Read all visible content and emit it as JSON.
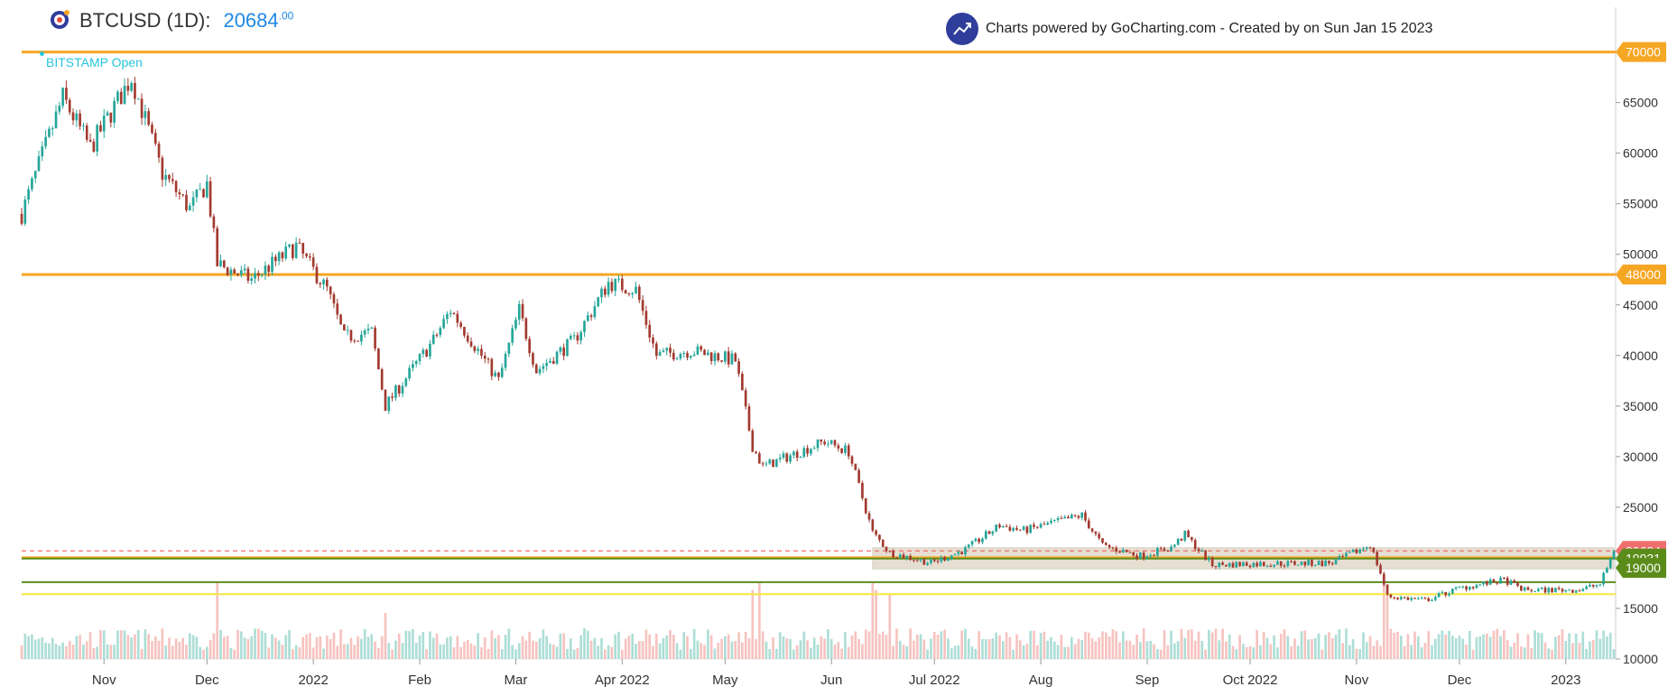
{
  "header": {
    "symbol": "BTCUSD (1D):",
    "price_main": "20684",
    "price_dec": ".00",
    "credit": "Charts powered by GoCharting.com - Created by  on Sun Jan 15 2023",
    "indicator": "BITSTAMP Open"
  },
  "colors": {
    "up": "#26a69a",
    "down": "#a33a2f",
    "orange": "#f5a623",
    "green_line": "#5b8c1a",
    "yellow": "#f5e642",
    "last_price": "#ef6f6c",
    "zone": "#c8b89a",
    "price_blue": "#1e88e5"
  },
  "chart_data": {
    "type": "candlestick",
    "title": "BTCUSD (1D)",
    "last_price": 20684,
    "y_ticks": [
      10000,
      15000,
      20000,
      25000,
      30000,
      35000,
      40000,
      45000,
      50000,
      55000,
      60000,
      65000,
      70000
    ],
    "ylim": [
      10000,
      70500
    ],
    "x_ticks": [
      "Nov",
      "Dec",
      "2022",
      "Feb",
      "Mar",
      "Apr 2022",
      "May",
      "Jun",
      "Jul 2022",
      "Aug",
      "Sep",
      "Oct 2022",
      "Nov",
      "Dec",
      "2023"
    ],
    "x_tick_dates": [
      "2021-11-01",
      "2021-12-01",
      "2022-01-01",
      "2022-02-01",
      "2022-03-01",
      "2022-04-01",
      "2022-05-01",
      "2022-06-01",
      "2022-07-01",
      "2022-08-01",
      "2022-09-01",
      "2022-10-01",
      "2022-11-01",
      "2022-12-01",
      "2023-01-01"
    ],
    "x_range": [
      "2021-10-08",
      "2023-01-15"
    ],
    "horizontal_levels": [
      {
        "value": 70000,
        "color": "orange",
        "label": "70000"
      },
      {
        "value": 48000,
        "color": "orange",
        "label": "48000"
      },
      {
        "value": 20684,
        "color": "last_price",
        "label": "20684",
        "dashed": true
      },
      {
        "value": 20000,
        "color": "orange",
        "label": ""
      },
      {
        "value": 19931,
        "color": "green_line",
        "label": "19931"
      },
      {
        "value": 17600,
        "color": "green_line",
        "label": ""
      },
      {
        "value": 16400,
        "color": "yellow",
        "label": ""
      },
      {
        "value": 19000,
        "color": "green_line",
        "label": "19000"
      }
    ],
    "zone": {
      "from": "2022-06-13",
      "to": "2023-01-15",
      "y_low": 18900,
      "y_high": 21000
    },
    "price_anchors": [
      [
        "2021-10-08",
        54000
      ],
      [
        "2021-10-20",
        65500
      ],
      [
        "2021-10-28",
        60500
      ],
      [
        "2021-11-09",
        67500
      ],
      [
        "2021-11-18",
        58000
      ],
      [
        "2021-11-26",
        54500
      ],
      [
        "2021-12-01",
        57000
      ],
      [
        "2021-12-04",
        49000
      ],
      [
        "2021-12-14",
        47500
      ],
      [
        "2021-12-27",
        50800
      ],
      [
        "2022-01-05",
        46500
      ],
      [
        "2022-01-10",
        41800
      ],
      [
        "2022-01-18",
        42300
      ],
      [
        "2022-01-22",
        35000
      ],
      [
        "2022-02-05",
        41500
      ],
      [
        "2022-02-10",
        44500
      ],
      [
        "2022-02-24",
        37500
      ],
      [
        "2022-03-02",
        44500
      ],
      [
        "2022-03-07",
        38500
      ],
      [
        "2022-03-18",
        41500
      ],
      [
        "2022-03-28",
        47200
      ],
      [
        "2022-04-05",
        46500
      ],
      [
        "2022-04-11",
        40000
      ],
      [
        "2022-04-21",
        40500
      ],
      [
        "2022-05-04",
        39500
      ],
      [
        "2022-05-09",
        31000
      ],
      [
        "2022-05-12",
        29000
      ],
      [
        "2022-05-30",
        31500
      ],
      [
        "2022-06-06",
        30500
      ],
      [
        "2022-06-13",
        22500
      ],
      [
        "2022-06-18",
        20500
      ],
      [
        "2022-06-30",
        19500
      ],
      [
        "2022-07-10",
        20800
      ],
      [
        "2022-07-20",
        23200
      ],
      [
        "2022-07-27",
        22700
      ],
      [
        "2022-08-13",
        24200
      ],
      [
        "2022-08-19",
        21200
      ],
      [
        "2022-08-30",
        20200
      ],
      [
        "2022-09-08",
        21000
      ],
      [
        "2022-09-12",
        22300
      ],
      [
        "2022-09-20",
        19300
      ],
      [
        "2022-10-01",
        19400
      ],
      [
        "2022-10-25",
        19500
      ],
      [
        "2022-11-05",
        21300
      ],
      [
        "2022-11-08",
        18500
      ],
      [
        "2022-11-10",
        16200
      ],
      [
        "2022-11-21",
        15800
      ],
      [
        "2022-12-01",
        17000
      ],
      [
        "2022-12-14",
        17800
      ],
      [
        "2022-12-20",
        16800
      ],
      [
        "2023-01-05",
        16850
      ],
      [
        "2023-01-11",
        17400
      ],
      [
        "2023-01-15",
        20684
      ]
    ],
    "volume_spikes": [
      [
        "2021-12-04",
        1.0
      ],
      [
        "2022-01-22",
        0.6
      ],
      [
        "2022-05-09",
        0.9
      ],
      [
        "2022-05-11",
        1.0
      ],
      [
        "2022-06-13",
        1.0
      ],
      [
        "2022-06-14",
        0.9
      ],
      [
        "2022-06-18",
        0.85
      ],
      [
        "2022-11-09",
        1.0
      ],
      [
        "2022-11-10",
        0.9
      ]
    ]
  }
}
